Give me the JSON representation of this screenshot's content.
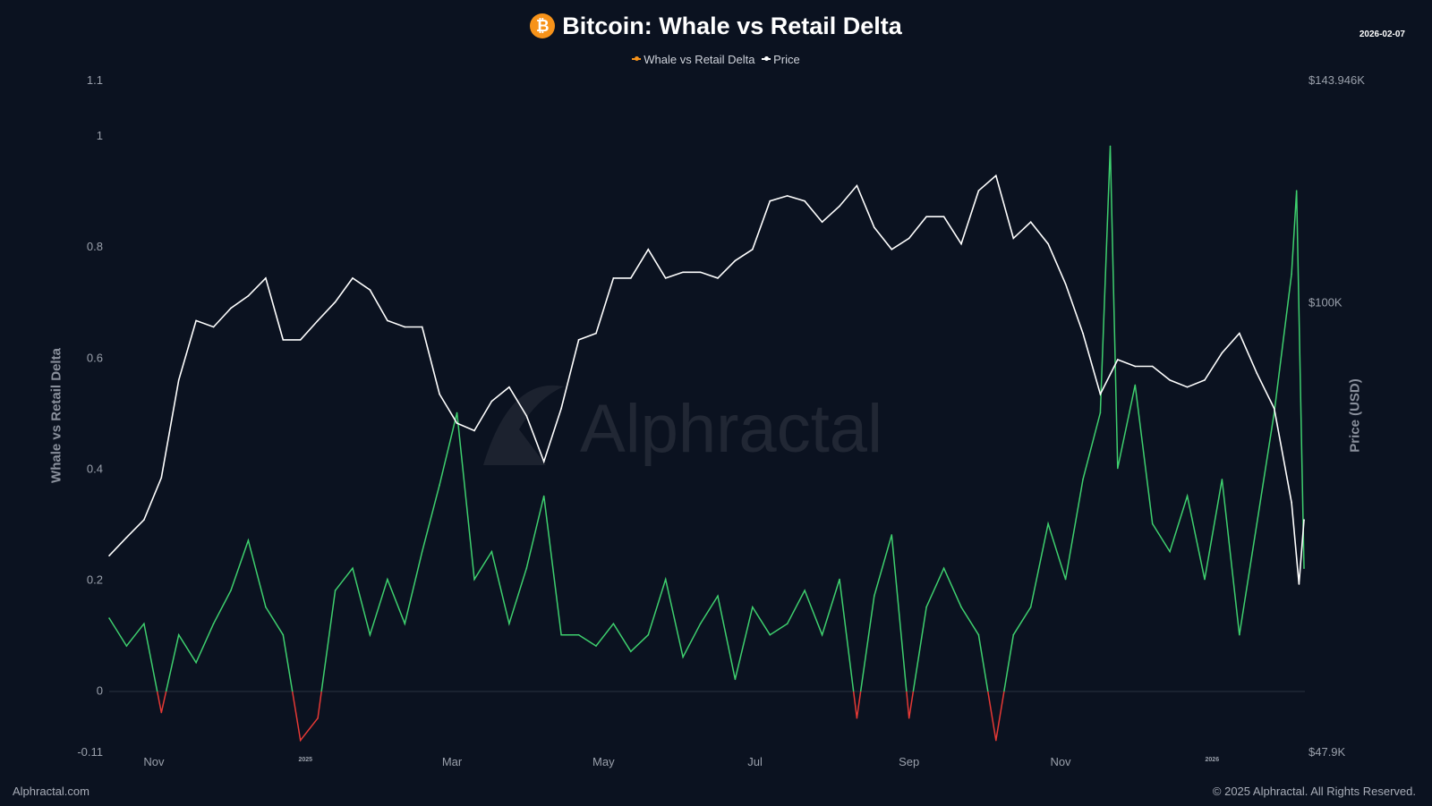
{
  "chart_data": {
    "type": "line",
    "title": "Bitcoin: Whale vs Retail Delta",
    "date_stamp": "2026-02-07",
    "legend": [
      "Whale vs Retail Delta",
      "Price"
    ],
    "legend_placement": "top-center",
    "ylabel_left": "Whale vs Retail Delta",
    "ylabel_right": "Price (USD)",
    "left_ticks": [
      "1.1",
      "1",
      "0.8",
      "0.6",
      "0.4",
      "0.2",
      "0",
      "-0.11"
    ],
    "left_tick_values": [
      1.1,
      1,
      0.8,
      0.6,
      0.4,
      0.2,
      0,
      -0.11
    ],
    "ylim_left": [
      -0.11,
      1.1
    ],
    "right_ticks": [
      "$143.946K",
      "$100K",
      "$47.9K"
    ],
    "right_tick_values": [
      143946,
      100000,
      47900
    ],
    "ylim_right": [
      47900,
      143946
    ],
    "right_scale": "log",
    "x_ticks": [
      {
        "label": "Nov",
        "date": "2024-11-01"
      },
      {
        "label": "2025",
        "date": "2025-01-01",
        "small": true
      },
      {
        "label": "Mar",
        "date": "2025-03-01"
      },
      {
        "label": "May",
        "date": "2025-05-01"
      },
      {
        "label": "Jul",
        "date": "2025-07-01"
      },
      {
        "label": "Sep",
        "date": "2025-09-01"
      },
      {
        "label": "Nov",
        "date": "2025-11-01"
      },
      {
        "label": "2026",
        "date": "2026-01-01",
        "small": true
      }
    ],
    "xlim": [
      "2024-10-14",
      "2026-02-07"
    ],
    "grid": false,
    "colors": {
      "delta_positive": "#3ecf6e",
      "delta_negative": "#e53935",
      "price": "#ffffff",
      "legend_delta": "#f7931a",
      "background": "#0b1220"
    },
    "series": [
      {
        "name": "Whale vs Retail Delta",
        "axis": "left",
        "points": [
          [
            "2024-10-14",
            0.13
          ],
          [
            "2024-10-21",
            0.08
          ],
          [
            "2024-10-28",
            0.12
          ],
          [
            "2024-11-04",
            -0.04
          ],
          [
            "2024-11-11",
            0.1
          ],
          [
            "2024-11-18",
            0.05
          ],
          [
            "2024-11-25",
            0.12
          ],
          [
            "2024-12-02",
            0.18
          ],
          [
            "2024-12-09",
            0.27
          ],
          [
            "2024-12-16",
            0.15
          ],
          [
            "2024-12-23",
            0.1
          ],
          [
            "2024-12-30",
            -0.09
          ],
          [
            "2025-01-06",
            -0.05
          ],
          [
            "2025-01-13",
            0.18
          ],
          [
            "2025-01-20",
            0.22
          ],
          [
            "2025-01-27",
            0.1
          ],
          [
            "2025-02-03",
            0.2
          ],
          [
            "2025-02-10",
            0.12
          ],
          [
            "2025-02-17",
            0.25
          ],
          [
            "2025-02-24",
            0.37
          ],
          [
            "2025-03-03",
            0.5
          ],
          [
            "2025-03-10",
            0.2
          ],
          [
            "2025-03-17",
            0.25
          ],
          [
            "2025-03-24",
            0.12
          ],
          [
            "2025-03-31",
            0.22
          ],
          [
            "2025-04-07",
            0.35
          ],
          [
            "2025-04-14",
            0.1
          ],
          [
            "2025-04-21",
            0.1
          ],
          [
            "2025-04-28",
            0.08
          ],
          [
            "2025-05-05",
            0.12
          ],
          [
            "2025-05-12",
            0.07
          ],
          [
            "2025-05-19",
            0.1
          ],
          [
            "2025-05-26",
            0.2
          ],
          [
            "2025-06-02",
            0.06
          ],
          [
            "2025-06-09",
            0.12
          ],
          [
            "2025-06-16",
            0.17
          ],
          [
            "2025-06-23",
            0.02
          ],
          [
            "2025-06-30",
            0.15
          ],
          [
            "2025-07-07",
            0.1
          ],
          [
            "2025-07-14",
            0.12
          ],
          [
            "2025-07-21",
            0.18
          ],
          [
            "2025-07-28",
            0.1
          ],
          [
            "2025-08-04",
            0.2
          ],
          [
            "2025-08-11",
            -0.05
          ],
          [
            "2025-08-18",
            0.17
          ],
          [
            "2025-08-25",
            0.28
          ],
          [
            "2025-09-01",
            -0.05
          ],
          [
            "2025-09-08",
            0.15
          ],
          [
            "2025-09-15",
            0.22
          ],
          [
            "2025-09-22",
            0.15
          ],
          [
            "2025-09-29",
            0.1
          ],
          [
            "2025-10-06",
            -0.09
          ],
          [
            "2025-10-13",
            0.1
          ],
          [
            "2025-10-20",
            0.15
          ],
          [
            "2025-10-27",
            0.3
          ],
          [
            "2025-11-03",
            0.2
          ],
          [
            "2025-11-10",
            0.38
          ],
          [
            "2025-11-17",
            0.5
          ],
          [
            "2025-11-21",
            0.98
          ],
          [
            "2025-11-24",
            0.4
          ],
          [
            "2025-12-01",
            0.55
          ],
          [
            "2025-12-08",
            0.3
          ],
          [
            "2025-12-15",
            0.25
          ],
          [
            "2025-12-22",
            0.35
          ],
          [
            "2025-12-29",
            0.2
          ],
          [
            "2026-01-05",
            0.38
          ],
          [
            "2026-01-12",
            0.1
          ],
          [
            "2026-01-19",
            0.3
          ],
          [
            "2026-01-26",
            0.5
          ],
          [
            "2026-02-02",
            0.75
          ],
          [
            "2026-02-04",
            0.9
          ],
          [
            "2026-02-07",
            0.22
          ]
        ]
      },
      {
        "name": "Price",
        "axis": "right",
        "points": [
          [
            "2024-10-14",
            66000
          ],
          [
            "2024-10-21",
            68000
          ],
          [
            "2024-10-28",
            70000
          ],
          [
            "2024-11-04",
            75000
          ],
          [
            "2024-11-11",
            88000
          ],
          [
            "2024-11-18",
            97000
          ],
          [
            "2024-11-25",
            96000
          ],
          [
            "2024-12-02",
            99000
          ],
          [
            "2024-12-09",
            101000
          ],
          [
            "2024-12-16",
            104000
          ],
          [
            "2024-12-23",
            94000
          ],
          [
            "2024-12-30",
            94000
          ],
          [
            "2025-01-06",
            97000
          ],
          [
            "2025-01-13",
            100000
          ],
          [
            "2025-01-20",
            104000
          ],
          [
            "2025-01-27",
            102000
          ],
          [
            "2025-02-03",
            97000
          ],
          [
            "2025-02-10",
            96000
          ],
          [
            "2025-02-17",
            96000
          ],
          [
            "2025-02-24",
            86000
          ],
          [
            "2025-03-03",
            82000
          ],
          [
            "2025-03-10",
            81000
          ],
          [
            "2025-03-17",
            85000
          ],
          [
            "2025-03-24",
            87000
          ],
          [
            "2025-03-31",
            83000
          ],
          [
            "2025-04-07",
            77000
          ],
          [
            "2025-04-14",
            84000
          ],
          [
            "2025-04-21",
            94000
          ],
          [
            "2025-04-28",
            95000
          ],
          [
            "2025-05-05",
            104000
          ],
          [
            "2025-05-12",
            104000
          ],
          [
            "2025-05-19",
            109000
          ],
          [
            "2025-05-26",
            104000
          ],
          [
            "2025-06-02",
            105000
          ],
          [
            "2025-06-09",
            105000
          ],
          [
            "2025-06-16",
            104000
          ],
          [
            "2025-06-23",
            107000
          ],
          [
            "2025-06-30",
            109000
          ],
          [
            "2025-07-07",
            118000
          ],
          [
            "2025-07-14",
            119000
          ],
          [
            "2025-07-21",
            118000
          ],
          [
            "2025-07-28",
            114000
          ],
          [
            "2025-08-04",
            117000
          ],
          [
            "2025-08-11",
            121000
          ],
          [
            "2025-08-18",
            113000
          ],
          [
            "2025-08-25",
            109000
          ],
          [
            "2025-09-01",
            111000
          ],
          [
            "2025-09-08",
            115000
          ],
          [
            "2025-09-15",
            115000
          ],
          [
            "2025-09-22",
            110000
          ],
          [
            "2025-09-29",
            120000
          ],
          [
            "2025-10-06",
            123000
          ],
          [
            "2025-10-13",
            111000
          ],
          [
            "2025-10-20",
            114000
          ],
          [
            "2025-10-27",
            110000
          ],
          [
            "2025-11-03",
            103000
          ],
          [
            "2025-11-10",
            95000
          ],
          [
            "2025-11-17",
            86000
          ],
          [
            "2025-11-24",
            91000
          ],
          [
            "2025-12-01",
            90000
          ],
          [
            "2025-12-08",
            90000
          ],
          [
            "2025-12-15",
            88000
          ],
          [
            "2025-12-22",
            87000
          ],
          [
            "2025-12-29",
            88000
          ],
          [
            "2026-01-05",
            92000
          ],
          [
            "2026-01-12",
            95000
          ],
          [
            "2026-01-19",
            89000
          ],
          [
            "2026-01-26",
            84000
          ],
          [
            "2026-02-02",
            72000
          ],
          [
            "2026-02-05",
            63000
          ],
          [
            "2026-02-07",
            70000
          ]
        ]
      }
    ]
  },
  "watermark": "Alphractal",
  "footer": {
    "left": "Alphractal.com",
    "right": "© 2025 Alphractal. All Rights Reserved."
  }
}
